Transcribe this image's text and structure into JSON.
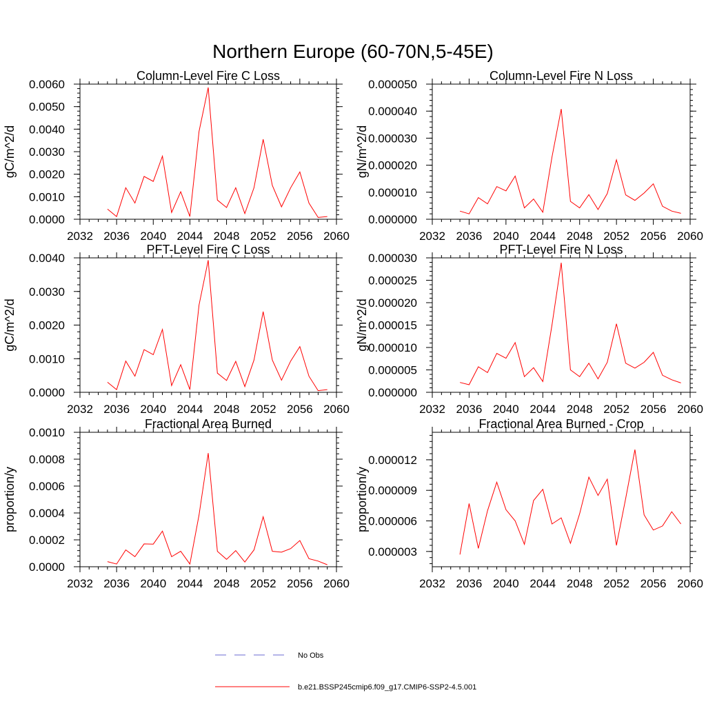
{
  "figure": {
    "title": "Northern Europe (60-70N,5-45E)"
  },
  "legend": {
    "entries": [
      {
        "label": "No Obs",
        "color": "#6a6ad0",
        "dash": true
      },
      {
        "label": "b.e21.BSSP245cmip6.f09_g17.CMIP6-SSP2-4.5.001",
        "color": "#ff0000",
        "dash": false
      }
    ]
  },
  "chart_data": [
    {
      "type": "line",
      "title": "Column-Level Fire C Loss",
      "ylabel": "gC/m^2/d",
      "xlim": [
        2032,
        2060
      ],
      "ylim": [
        0,
        0.006
      ],
      "xticks": [
        2032,
        2036,
        2040,
        2044,
        2048,
        2052,
        2056,
        2060
      ],
      "yticks": [
        "0.0000",
        "0.0010",
        "0.0020",
        "0.0030",
        "0.0040",
        "0.0050",
        "0.0060"
      ],
      "ytick_values": [
        0,
        0.001,
        0.002,
        0.003,
        0.004,
        0.005,
        0.006
      ],
      "series": [
        {
          "name": "b.e21.BSSP245cmip6.f09_g17.CMIP6-SSP2-4.5.001",
          "color": "#ff0000",
          "x": [
            2035,
            2036,
            2037,
            2038,
            2039,
            2040,
            2041,
            2042,
            2043,
            2044,
            2045,
            2046,
            2047,
            2048,
            2049,
            2050,
            2051,
            2052,
            2053,
            2054,
            2055,
            2056,
            2057,
            2058,
            2059
          ],
          "y": [
            0.00045,
            0.00012,
            0.0014,
            0.00072,
            0.0019,
            0.00168,
            0.0028,
            0.0003,
            0.00122,
            0.00012,
            0.0039,
            0.00585,
            0.00085,
            0.00052,
            0.0014,
            0.00025,
            0.0014,
            0.00355,
            0.0015,
            0.00055,
            0.0014,
            0.0021,
            0.00072,
            8e-05,
            0.00012
          ]
        }
      ]
    },
    {
      "type": "line",
      "title": "Column-Level Fire N Loss",
      "ylabel": "gN/m^2/d",
      "xlim": [
        2032,
        2060
      ],
      "ylim": [
        0,
        5e-05
      ],
      "xticks": [
        2032,
        2036,
        2040,
        2044,
        2048,
        2052,
        2056,
        2060
      ],
      "yticks": [
        "0.000000",
        "0.000010",
        "0.000020",
        "0.000030",
        "0.000040",
        "0.000050"
      ],
      "ytick_values": [
        0,
        1e-05,
        2e-05,
        3e-05,
        4e-05,
        5e-05
      ],
      "series": [
        {
          "name": "b.e21.BSSP245cmip6.f09_g17.CMIP6-SSP2-4.5.001",
          "color": "#ff0000",
          "x": [
            2035,
            2036,
            2037,
            2038,
            2039,
            2040,
            2041,
            2042,
            2043,
            2044,
            2045,
            2046,
            2047,
            2048,
            2049,
            2050,
            2051,
            2052,
            2053,
            2054,
            2055,
            2056,
            2057,
            2058,
            2059
          ],
          "y": [
            3e-06,
            2e-06,
            8e-06,
            5.7e-06,
            1.21e-05,
            1.05e-05,
            1.6e-05,
            4.2e-06,
            7.5e-06,
            2.6e-06,
            2.3e-05,
            4.08e-05,
            6.6e-06,
            4.2e-06,
            9.1e-06,
            3.6e-06,
            9.5e-06,
            2.2e-05,
            9e-06,
            7e-06,
            9.7e-06,
            1.31e-05,
            4.8e-06,
            3e-06,
            2.2e-06
          ]
        }
      ]
    },
    {
      "type": "line",
      "title": "PFT-Level Fire C Loss",
      "ylabel": "gC/m^2/d",
      "xlim": [
        2032,
        2060
      ],
      "ylim": [
        0,
        0.004
      ],
      "xticks": [
        2032,
        2036,
        2040,
        2044,
        2048,
        2052,
        2056,
        2060
      ],
      "yticks": [
        "0.0000",
        "0.0010",
        "0.0020",
        "0.0030",
        "0.0040"
      ],
      "ytick_values": [
        0,
        0.001,
        0.002,
        0.003,
        0.004
      ],
      "series": [
        {
          "name": "b.e21.BSSP245cmip6.f09_g17.CMIP6-SSP2-4.5.001",
          "color": "#ff0000",
          "x": [
            2035,
            2036,
            2037,
            2038,
            2039,
            2040,
            2041,
            2042,
            2043,
            2044,
            2045,
            2046,
            2047,
            2048,
            2049,
            2050,
            2051,
            2052,
            2053,
            2054,
            2055,
            2056,
            2057,
            2058,
            2059
          ],
          "y": [
            0.0003,
            8e-05,
            0.00093,
            0.00048,
            0.00127,
            0.00112,
            0.00187,
            0.0002,
            0.00082,
            8e-05,
            0.0026,
            0.00393,
            0.00057,
            0.00035,
            0.00092,
            0.00017,
            0.00096,
            0.0024,
            0.00096,
            0.00036,
            0.00093,
            0.00136,
            0.00048,
            5e-05,
            8e-05
          ]
        }
      ]
    },
    {
      "type": "line",
      "title": "PFT-Level Fire N Loss",
      "ylabel": "gN/m^2/d",
      "xlim": [
        2032,
        2060
      ],
      "ylim": [
        0,
        3e-05
      ],
      "xticks": [
        2032,
        2036,
        2040,
        2044,
        2048,
        2052,
        2056,
        2060
      ],
      "yticks": [
        "0.000000",
        "0.000005",
        "0.000010",
        "0.000015",
        "0.000020",
        "0.000025",
        "0.000030"
      ],
      "ytick_values": [
        0,
        5e-06,
        1e-05,
        1.5e-05,
        2e-05,
        2.5e-05,
        3e-05
      ],
      "series": [
        {
          "name": "b.e21.BSSP245cmip6.f09_g17.CMIP6-SSP2-4.5.001",
          "color": "#ff0000",
          "x": [
            2035,
            2036,
            2037,
            2038,
            2039,
            2040,
            2041,
            2042,
            2043,
            2044,
            2045,
            2046,
            2047,
            2048,
            2049,
            2050,
            2051,
            2052,
            2053,
            2054,
            2055,
            2056,
            2057,
            2058,
            2059
          ],
          "y": [
            2.2e-06,
            1.7e-06,
            5.7e-06,
            4.4e-06,
            8.7e-06,
            7.6e-06,
            1.11e-05,
            3.5e-06,
            5.5e-06,
            2.4e-06,
            1.5e-05,
            2.89e-05,
            5e-06,
            3.5e-06,
            6.5e-06,
            3e-06,
            6.7e-06,
            1.53e-05,
            6.5e-06,
            5.4e-06,
            6.7e-06,
            8.9e-06,
            3.8e-06,
            2.8e-06,
            2.1e-06
          ]
        }
      ]
    },
    {
      "type": "line",
      "title": "Fractional Area Burned",
      "ylabel": "proportion/y",
      "xlim": [
        2032,
        2060
      ],
      "ylim": [
        0,
        0.001
      ],
      "xticks": [
        2032,
        2036,
        2040,
        2044,
        2048,
        2052,
        2056,
        2060
      ],
      "yticks": [
        "0.0000",
        "0.0002",
        "0.0004",
        "0.0006",
        "0.0008",
        "0.0010"
      ],
      "ytick_values": [
        0,
        0.0002,
        0.0004,
        0.0006,
        0.0008,
        0.001
      ],
      "series": [
        {
          "name": "b.e21.BSSP245cmip6.f09_g17.CMIP6-SSP2-4.5.001",
          "color": "#ff0000",
          "x": [
            2035,
            2036,
            2037,
            2038,
            2039,
            2040,
            2041,
            2042,
            2043,
            2044,
            2045,
            2046,
            2047,
            2048,
            2049,
            2050,
            2051,
            2052,
            2053,
            2054,
            2055,
            2056,
            2057,
            2058,
            2059
          ],
          "y": [
            3.8e-05,
            2e-05,
            0.000125,
            7.5e-05,
            0.00017,
            0.000168,
            0.000265,
            7.5e-05,
            0.000115,
            2e-05,
            0.000385,
            0.000845,
            0.000115,
            5.5e-05,
            0.00012,
            3.5e-05,
            0.000125,
            0.000372,
            0.000115,
            0.000108,
            0.000135,
            0.000195,
            6e-05,
            4.2e-05,
            1.5e-05
          ]
        }
      ]
    },
    {
      "type": "line",
      "title": "Fractional Area Burned - Crop",
      "ylabel": "proportion/y",
      "xlim": [
        2032,
        2060
      ],
      "ylim": [
        1.5e-06,
        1.47e-05
      ],
      "xticks": [
        2032,
        2036,
        2040,
        2044,
        2048,
        2052,
        2056,
        2060
      ],
      "yticks": [
        "0.000003",
        "0.000006",
        "0.000009",
        "0.000012"
      ],
      "ytick_values": [
        3e-06,
        6e-06,
        9e-06,
        1.2e-05
      ],
      "series": [
        {
          "name": "b.e21.BSSP245cmip6.f09_g17.CMIP6-SSP2-4.5.001",
          "color": "#ff0000",
          "x": [
            2035,
            2036,
            2037,
            2038,
            2039,
            2040,
            2041,
            2042,
            2043,
            2044,
            2045,
            2046,
            2047,
            2048,
            2049,
            2050,
            2051,
            2052,
            2053,
            2054,
            2055,
            2056,
            2057,
            2058,
            2059
          ],
          "y": [
            2.7e-06,
            7.7e-06,
            3.3e-06,
            7e-06,
            9.8e-06,
            7.1e-06,
            6e-06,
            3.7e-06,
            8e-06,
            9.1e-06,
            5.7e-06,
            6.3e-06,
            3.8e-06,
            6.7e-06,
            1.03e-05,
            8.5e-06,
            1.01e-05,
            3.6e-06,
            8.2e-06,
            1.3e-05,
            6.6e-06,
            5.1e-06,
            5.5e-06,
            6.9e-06,
            5.7e-06
          ]
        }
      ]
    }
  ]
}
